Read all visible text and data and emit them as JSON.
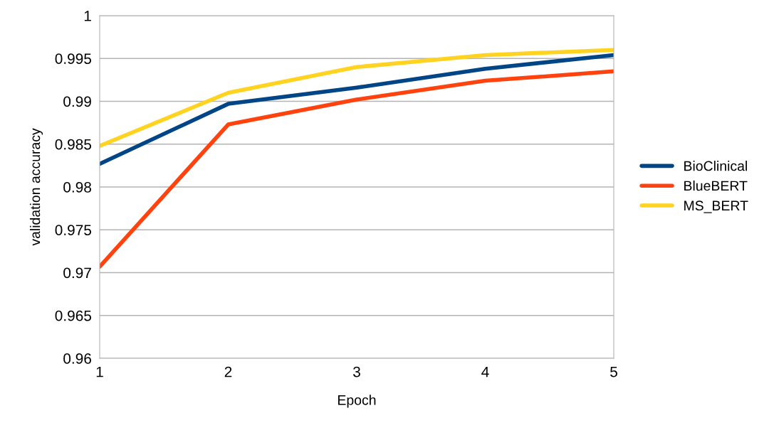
{
  "chart_data": {
    "type": "line",
    "xlabel": "Epoch",
    "ylabel": "validation accuracy",
    "x": [
      1,
      2,
      3,
      4,
      5
    ],
    "series": [
      {
        "name": "BioClinical",
        "color": "#004586",
        "values": [
          0.9827,
          0.9897,
          0.9916,
          0.9938,
          0.9954
        ]
      },
      {
        "name": "BlueBERT",
        "color": "#ff420e",
        "values": [
          0.9707,
          0.9873,
          0.9902,
          0.9924,
          0.9935
        ]
      },
      {
        "name": "MS_BERT",
        "color": "#ffd320",
        "values": [
          0.9848,
          0.991,
          0.994,
          0.9954,
          0.996
        ]
      }
    ],
    "xlim": [
      1,
      5
    ],
    "xticks": [
      1,
      2,
      3,
      4,
      5
    ],
    "ylim": [
      0.96,
      1
    ],
    "yticks": [
      0.96,
      0.965,
      0.97,
      0.975,
      0.98,
      0.985,
      0.99,
      0.995,
      1
    ],
    "grid": "y",
    "legend": "right",
    "marker": "none",
    "line_style": "solid"
  }
}
